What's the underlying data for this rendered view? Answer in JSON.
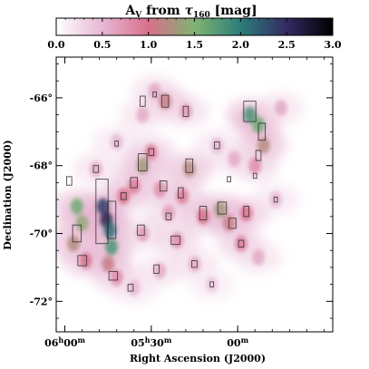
{
  "chart_data": {
    "type": "heatmap",
    "title_parts": [
      "A",
      "V",
      " from ",
      "τ",
      "160",
      " [mag]"
    ],
    "colorbar": {
      "range": [
        0.0,
        3.0
      ],
      "tick_labels": [
        "0.0",
        "0.5",
        "1.0",
        "1.5",
        "2.0",
        "2.5",
        "3.0"
      ],
      "tick_values": [
        0.0,
        0.5,
        1.0,
        1.5,
        2.0,
        2.5,
        3.0
      ],
      "colors": [
        "#ffffff",
        "#e6b7d4",
        "#d96f8a",
        "#7fb472",
        "#2c7d79",
        "#332a63",
        "#000000"
      ]
    },
    "xlabel": "Right Ascension (J2000)",
    "ylabel": "Declination (J2000)",
    "x_ticks": [
      {
        "label": "06",
        "sup": "h",
        "label2": "00",
        "sup2": "m",
        "value": 6.0
      },
      {
        "label": "05",
        "sup": "h",
        "label2": "30",
        "sup2": "m",
        "value": 5.5
      },
      {
        "label": "00",
        "sup": "m",
        "label2": "",
        "sup2": "",
        "value": 5.0
      }
    ],
    "y_ticks": [
      {
        "label": "-66°",
        "value": -66
      },
      {
        "label": "-68°",
        "value": -68
      },
      {
        "label": "-70°",
        "value": -70
      },
      {
        "label": "-72°",
        "value": -72
      }
    ],
    "xlim": [
      6.05,
      4.45
    ],
    "ylim": [
      -72.9,
      -64.8
    ],
    "cloud_patches": [
      {
        "ra": 5.93,
        "dec": -69.2,
        "av": 1.6
      },
      {
        "ra": 5.9,
        "dec": -69.7,
        "av": 1.4
      },
      {
        "ra": 5.95,
        "dec": -70.3,
        "av": 1.2
      },
      {
        "ra": 5.88,
        "dec": -70.8,
        "av": 1.0
      },
      {
        "ra": 5.78,
        "dec": -69.2,
        "av": 2.4
      },
      {
        "ra": 5.76,
        "dec": -69.6,
        "av": 2.6
      },
      {
        "ra": 5.74,
        "dec": -69.9,
        "av": 2.1
      },
      {
        "ra": 5.73,
        "dec": -70.4,
        "av": 1.8
      },
      {
        "ra": 5.75,
        "dec": -70.9,
        "av": 1.1
      },
      {
        "ra": 5.7,
        "dec": -71.3,
        "av": 0.8
      },
      {
        "ra": 5.66,
        "dec": -68.9,
        "av": 1.0
      },
      {
        "ra": 5.6,
        "dec": -68.6,
        "av": 0.9
      },
      {
        "ra": 5.55,
        "dec": -68.0,
        "av": 1.3
      },
      {
        "ra": 5.5,
        "dec": -67.6,
        "av": 0.9
      },
      {
        "ra": 5.45,
        "dec": -68.7,
        "av": 0.8
      },
      {
        "ra": 5.4,
        "dec": -69.4,
        "av": 0.7
      },
      {
        "ra": 5.42,
        "dec": -66.1,
        "av": 1.1
      },
      {
        "ra": 5.55,
        "dec": -66.5,
        "av": 0.6
      },
      {
        "ra": 5.3,
        "dec": -66.4,
        "av": 0.7
      },
      {
        "ra": 5.28,
        "dec": -68.1,
        "av": 1.2
      },
      {
        "ra": 5.32,
        "dec": -68.9,
        "av": 0.9
      },
      {
        "ra": 5.2,
        "dec": -69.5,
        "av": 1.0
      },
      {
        "ra": 5.35,
        "dec": -70.2,
        "av": 0.8
      },
      {
        "ra": 5.55,
        "dec": -70.0,
        "av": 0.7
      },
      {
        "ra": 5.45,
        "dec": -71.1,
        "av": 0.6
      },
      {
        "ra": 5.6,
        "dec": -71.6,
        "av": 0.5
      },
      {
        "ra": 5.25,
        "dec": -70.9,
        "av": 0.6
      },
      {
        "ra": 5.1,
        "dec": -69.3,
        "av": 1.3
      },
      {
        "ra": 5.05,
        "dec": -69.7,
        "av": 1.1
      },
      {
        "ra": 4.95,
        "dec": -69.4,
        "av": 1.0
      },
      {
        "ra": 4.98,
        "dec": -70.3,
        "av": 0.9
      },
      {
        "ra": 4.88,
        "dec": -70.7,
        "av": 0.6
      },
      {
        "ra": 4.93,
        "dec": -66.5,
        "av": 1.8
      },
      {
        "ra": 4.88,
        "dec": -66.8,
        "av": 1.6
      },
      {
        "ra": 4.85,
        "dec": -67.4,
        "av": 1.2
      },
      {
        "ra": 4.9,
        "dec": -68.0,
        "av": 0.8
      },
      {
        "ra": 5.02,
        "dec": -67.8,
        "av": 0.6
      },
      {
        "ra": 5.12,
        "dec": -67.4,
        "av": 0.5
      },
      {
        "ra": 5.7,
        "dec": -67.3,
        "av": 0.5
      },
      {
        "ra": 5.82,
        "dec": -68.1,
        "av": 0.6
      },
      {
        "ra": 5.48,
        "dec": -65.8,
        "av": 0.6
      },
      {
        "ra": 4.78,
        "dec": -69.0,
        "av": 0.5
      },
      {
        "ra": 5.15,
        "dec": -71.5,
        "av": 0.4
      },
      {
        "ra": 4.75,
        "dec": -66.3,
        "av": 0.6
      }
    ],
    "contour_boxes": [
      {
        "ra": 5.785,
        "dec": -69.35,
        "w": 0.07,
        "h": 1.9
      },
      {
        "ra": 5.73,
        "dec": -69.6,
        "w": 0.05,
        "h": 1.1
      },
      {
        "ra": 5.93,
        "dec": -70.0,
        "w": 0.05,
        "h": 0.5
      },
      {
        "ra": 5.9,
        "dec": -70.8,
        "w": 0.05,
        "h": 0.3
      },
      {
        "ra": 5.72,
        "dec": -71.25,
        "w": 0.05,
        "h": 0.25
      },
      {
        "ra": 5.975,
        "dec": -68.45,
        "w": 0.03,
        "h": 0.25
      },
      {
        "ra": 5.55,
        "dec": -66.1,
        "w": 0.03,
        "h": 0.3
      },
      {
        "ra": 5.42,
        "dec": -66.1,
        "w": 0.04,
        "h": 0.35
      },
      {
        "ra": 5.3,
        "dec": -66.4,
        "w": 0.03,
        "h": 0.3
      },
      {
        "ra": 4.93,
        "dec": -66.4,
        "w": 0.07,
        "h": 0.6
      },
      {
        "ra": 4.86,
        "dec": -67.0,
        "w": 0.04,
        "h": 0.5
      },
      {
        "ra": 4.88,
        "dec": -67.7,
        "w": 0.03,
        "h": 0.3
      },
      {
        "ra": 5.55,
        "dec": -67.9,
        "w": 0.05,
        "h": 0.5
      },
      {
        "ra": 5.6,
        "dec": -68.5,
        "w": 0.04,
        "h": 0.3
      },
      {
        "ra": 5.43,
        "dec": -68.6,
        "w": 0.04,
        "h": 0.3
      },
      {
        "ra": 5.28,
        "dec": -68.0,
        "w": 0.04,
        "h": 0.4
      },
      {
        "ra": 5.33,
        "dec": -68.8,
        "w": 0.03,
        "h": 0.3
      },
      {
        "ra": 5.2,
        "dec": -69.4,
        "w": 0.04,
        "h": 0.4
      },
      {
        "ra": 5.09,
        "dec": -69.25,
        "w": 0.05,
        "h": 0.35
      },
      {
        "ra": 5.03,
        "dec": -69.7,
        "w": 0.04,
        "h": 0.3
      },
      {
        "ra": 4.95,
        "dec": -69.35,
        "w": 0.03,
        "h": 0.3
      },
      {
        "ra": 4.98,
        "dec": -70.3,
        "w": 0.03,
        "h": 0.2
      },
      {
        "ra": 5.36,
        "dec": -70.2,
        "w": 0.05,
        "h": 0.25
      },
      {
        "ra": 5.56,
        "dec": -69.9,
        "w": 0.04,
        "h": 0.3
      },
      {
        "ra": 5.47,
        "dec": -71.05,
        "w": 0.03,
        "h": 0.25
      },
      {
        "ra": 5.62,
        "dec": -71.6,
        "w": 0.03,
        "h": 0.2
      },
      {
        "ra": 5.25,
        "dec": -70.9,
        "w": 0.03,
        "h": 0.2
      },
      {
        "ra": 5.66,
        "dec": -68.9,
        "w": 0.03,
        "h": 0.2
      },
      {
        "ra": 5.12,
        "dec": -67.4,
        "w": 0.03,
        "h": 0.2
      },
      {
        "ra": 5.7,
        "dec": -67.35,
        "w": 0.02,
        "h": 0.15
      },
      {
        "ra": 5.82,
        "dec": -68.1,
        "w": 0.03,
        "h": 0.2
      },
      {
        "ra": 5.48,
        "dec": -65.9,
        "w": 0.02,
        "h": 0.15
      },
      {
        "ra": 4.78,
        "dec": -69.0,
        "w": 0.02,
        "h": 0.15
      },
      {
        "ra": 5.15,
        "dec": -71.5,
        "w": 0.02,
        "h": 0.15
      },
      {
        "ra": 5.4,
        "dec": -69.5,
        "w": 0.03,
        "h": 0.2
      },
      {
        "ra": 5.5,
        "dec": -67.6,
        "w": 0.03,
        "h": 0.2
      },
      {
        "ra": 4.9,
        "dec": -68.3,
        "w": 0.02,
        "h": 0.15
      },
      {
        "ra": 5.05,
        "dec": -68.4,
        "w": 0.02,
        "h": 0.15
      }
    ]
  }
}
